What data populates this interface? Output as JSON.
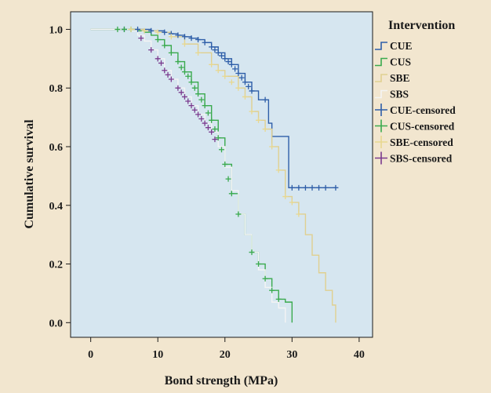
{
  "chart_data": {
    "type": "line",
    "subtype": "kaplan-meier-step",
    "xlabel": "Bond strength (MPa)",
    "ylabel": "Cumulative survival",
    "xlim": [
      -3,
      42
    ],
    "ylim": [
      -0.05,
      1.06
    ],
    "xticks": [
      0,
      10,
      20,
      30,
      40
    ],
    "yticks": [
      0.0,
      0.2,
      0.4,
      0.6,
      0.8,
      1.0
    ],
    "xtick_labels": [
      "0",
      "10",
      "20",
      "30",
      "40"
    ],
    "ytick_labels": [
      "0.0",
      "0.2",
      "0.4",
      "0.6",
      "0.8",
      "1.0"
    ],
    "grid": false,
    "legend_title": "Intervention",
    "legend_placement": "right",
    "series": [
      {
        "name": "CUE",
        "color": "#2e5ea8",
        "x": [
          0,
          5,
          9,
          11,
          12,
          13,
          14,
          15,
          16,
          17,
          18,
          19,
          20,
          21,
          22,
          23,
          24,
          25,
          26,
          26.5,
          27,
          28,
          29,
          29.5,
          36.5
        ],
        "y": [
          1.0,
          1.0,
          0.995,
          0.99,
          0.985,
          0.98,
          0.975,
          0.97,
          0.965,
          0.955,
          0.94,
          0.92,
          0.9,
          0.88,
          0.85,
          0.82,
          0.79,
          0.76,
          0.76,
          0.68,
          0.635,
          0.635,
          0.635,
          0.46,
          0.46
        ]
      },
      {
        "name": "CUS",
        "color": "#3aaa4e",
        "x": [
          0,
          6,
          7,
          8,
          9,
          10,
          11,
          12,
          13,
          14,
          15,
          16,
          17,
          18,
          19,
          20,
          21,
          22,
          23,
          24,
          25,
          26,
          27,
          28,
          29,
          30
        ],
        "y": [
          1.0,
          1.0,
          0.995,
          0.99,
          0.98,
          0.965,
          0.945,
          0.92,
          0.89,
          0.855,
          0.82,
          0.78,
          0.74,
          0.69,
          0.63,
          0.54,
          0.44,
          0.37,
          0.3,
          0.24,
          0.2,
          0.15,
          0.11,
          0.08,
          0.07,
          0.0
        ]
      },
      {
        "name": "SBE",
        "color": "#e0d090",
        "x": [
          0,
          6,
          8,
          10,
          12,
          14,
          16,
          18,
          19,
          20,
          22,
          23,
          24,
          25,
          26,
          27,
          28,
          29,
          30,
          31,
          32,
          33,
          34,
          35,
          36,
          36.5
        ],
        "y": [
          1.0,
          1.0,
          0.995,
          0.99,
          0.975,
          0.95,
          0.92,
          0.88,
          0.86,
          0.84,
          0.8,
          0.77,
          0.72,
          0.69,
          0.66,
          0.6,
          0.52,
          0.43,
          0.41,
          0.37,
          0.3,
          0.23,
          0.17,
          0.11,
          0.06,
          0.0
        ]
      },
      {
        "name": "SBS",
        "color": "#f4f4f4",
        "x": [
          0,
          5,
          6,
          7,
          8,
          9,
          10,
          11,
          12,
          13,
          14,
          15,
          16,
          17,
          18,
          19,
          20,
          21,
          22,
          23,
          24,
          25,
          26,
          27,
          28,
          29
        ],
        "y": [
          1.0,
          1.0,
          0.995,
          0.98,
          0.96,
          0.93,
          0.9,
          0.86,
          0.83,
          0.8,
          0.77,
          0.74,
          0.71,
          0.68,
          0.65,
          0.6,
          0.53,
          0.45,
          0.37,
          0.3,
          0.24,
          0.18,
          0.12,
          0.07,
          0.05,
          0.0
        ]
      }
    ],
    "censored": [
      {
        "name": "CUE-censored",
        "color": "#2e5ea8",
        "x": [
          5,
          7,
          9,
          11,
          12,
          13,
          14,
          15,
          16,
          17,
          18,
          18.5,
          19,
          19.5,
          20,
          20.5,
          21,
          21.5,
          22,
          22.5,
          23,
          23.5,
          24,
          26,
          30,
          31,
          32,
          33,
          34,
          35,
          36.5
        ],
        "y": [
          1.0,
          1.0,
          0.995,
          0.99,
          0.985,
          0.98,
          0.975,
          0.97,
          0.965,
          0.955,
          0.94,
          0.93,
          0.92,
          0.91,
          0.9,
          0.89,
          0.88,
          0.865,
          0.85,
          0.835,
          0.82,
          0.805,
          0.79,
          0.76,
          0.46,
          0.46,
          0.46,
          0.46,
          0.46,
          0.46,
          0.46
        ]
      },
      {
        "name": "CUS-censored",
        "color": "#3aaa4e",
        "x": [
          4,
          5,
          6,
          10,
          11,
          12,
          13,
          13.5,
          14,
          14.5,
          15,
          15.5,
          16,
          16.5,
          17,
          17.5,
          18,
          18.5,
          19,
          19.5,
          20,
          20.5,
          21,
          22,
          24,
          25,
          26,
          27,
          28
        ],
        "y": [
          1.0,
          1.0,
          1.0,
          0.965,
          0.945,
          0.92,
          0.89,
          0.87,
          0.855,
          0.84,
          0.82,
          0.8,
          0.78,
          0.76,
          0.74,
          0.715,
          0.69,
          0.66,
          0.63,
          0.59,
          0.54,
          0.49,
          0.44,
          0.37,
          0.24,
          0.2,
          0.15,
          0.11,
          0.08
        ]
      },
      {
        "name": "SBE-censored",
        "color": "#e8d890",
        "x": [
          6,
          8,
          10,
          12,
          14,
          16,
          18,
          19,
          20,
          21,
          22,
          23,
          24,
          25,
          26,
          27,
          28,
          29,
          30,
          31
        ],
        "y": [
          1.0,
          0.995,
          0.99,
          0.975,
          0.95,
          0.92,
          0.88,
          0.86,
          0.84,
          0.82,
          0.8,
          0.77,
          0.72,
          0.69,
          0.66,
          0.6,
          0.52,
          0.43,
          0.41,
          0.37
        ]
      },
      {
        "name": "SBS-censored",
        "color": "#7a3a8e",
        "x": [
          7.5,
          9,
          10,
          10.5,
          11,
          11.5,
          12,
          13,
          13.5,
          14,
          14.5,
          15,
          15.5,
          16,
          16.5,
          17,
          17.5,
          18,
          18.5
        ],
        "y": [
          0.97,
          0.93,
          0.9,
          0.885,
          0.86,
          0.845,
          0.83,
          0.8,
          0.785,
          0.77,
          0.755,
          0.74,
          0.725,
          0.71,
          0.695,
          0.68,
          0.665,
          0.65,
          0.625
        ]
      }
    ]
  }
}
